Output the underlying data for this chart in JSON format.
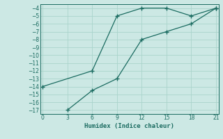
{
  "xlabel": "Humidex (Indice chaleur)",
  "bg_color": "#cce8e4",
  "line_color": "#1a6b60",
  "grid_color": "#aad4cc",
  "line1_x": [
    0,
    6,
    9,
    12,
    15,
    18,
    21
  ],
  "line1_y": [
    -14,
    -12,
    -5,
    -4,
    -4,
    -5,
    -4
  ],
  "line2_x": [
    3,
    6,
    9,
    12,
    15,
    18,
    21
  ],
  "line2_y": [
    -17,
    -14.5,
    -13,
    -8,
    -7,
    -6,
    -4
  ],
  "xlim": [
    -0.3,
    21.3
  ],
  "ylim": [
    -17.5,
    -3.5
  ],
  "xticks": [
    0,
    3,
    6,
    9,
    12,
    15,
    18,
    21
  ],
  "yticks": [
    -4,
    -5,
    -6,
    -7,
    -8,
    -9,
    -10,
    -11,
    -12,
    -13,
    -14,
    -15,
    -16,
    -17
  ]
}
